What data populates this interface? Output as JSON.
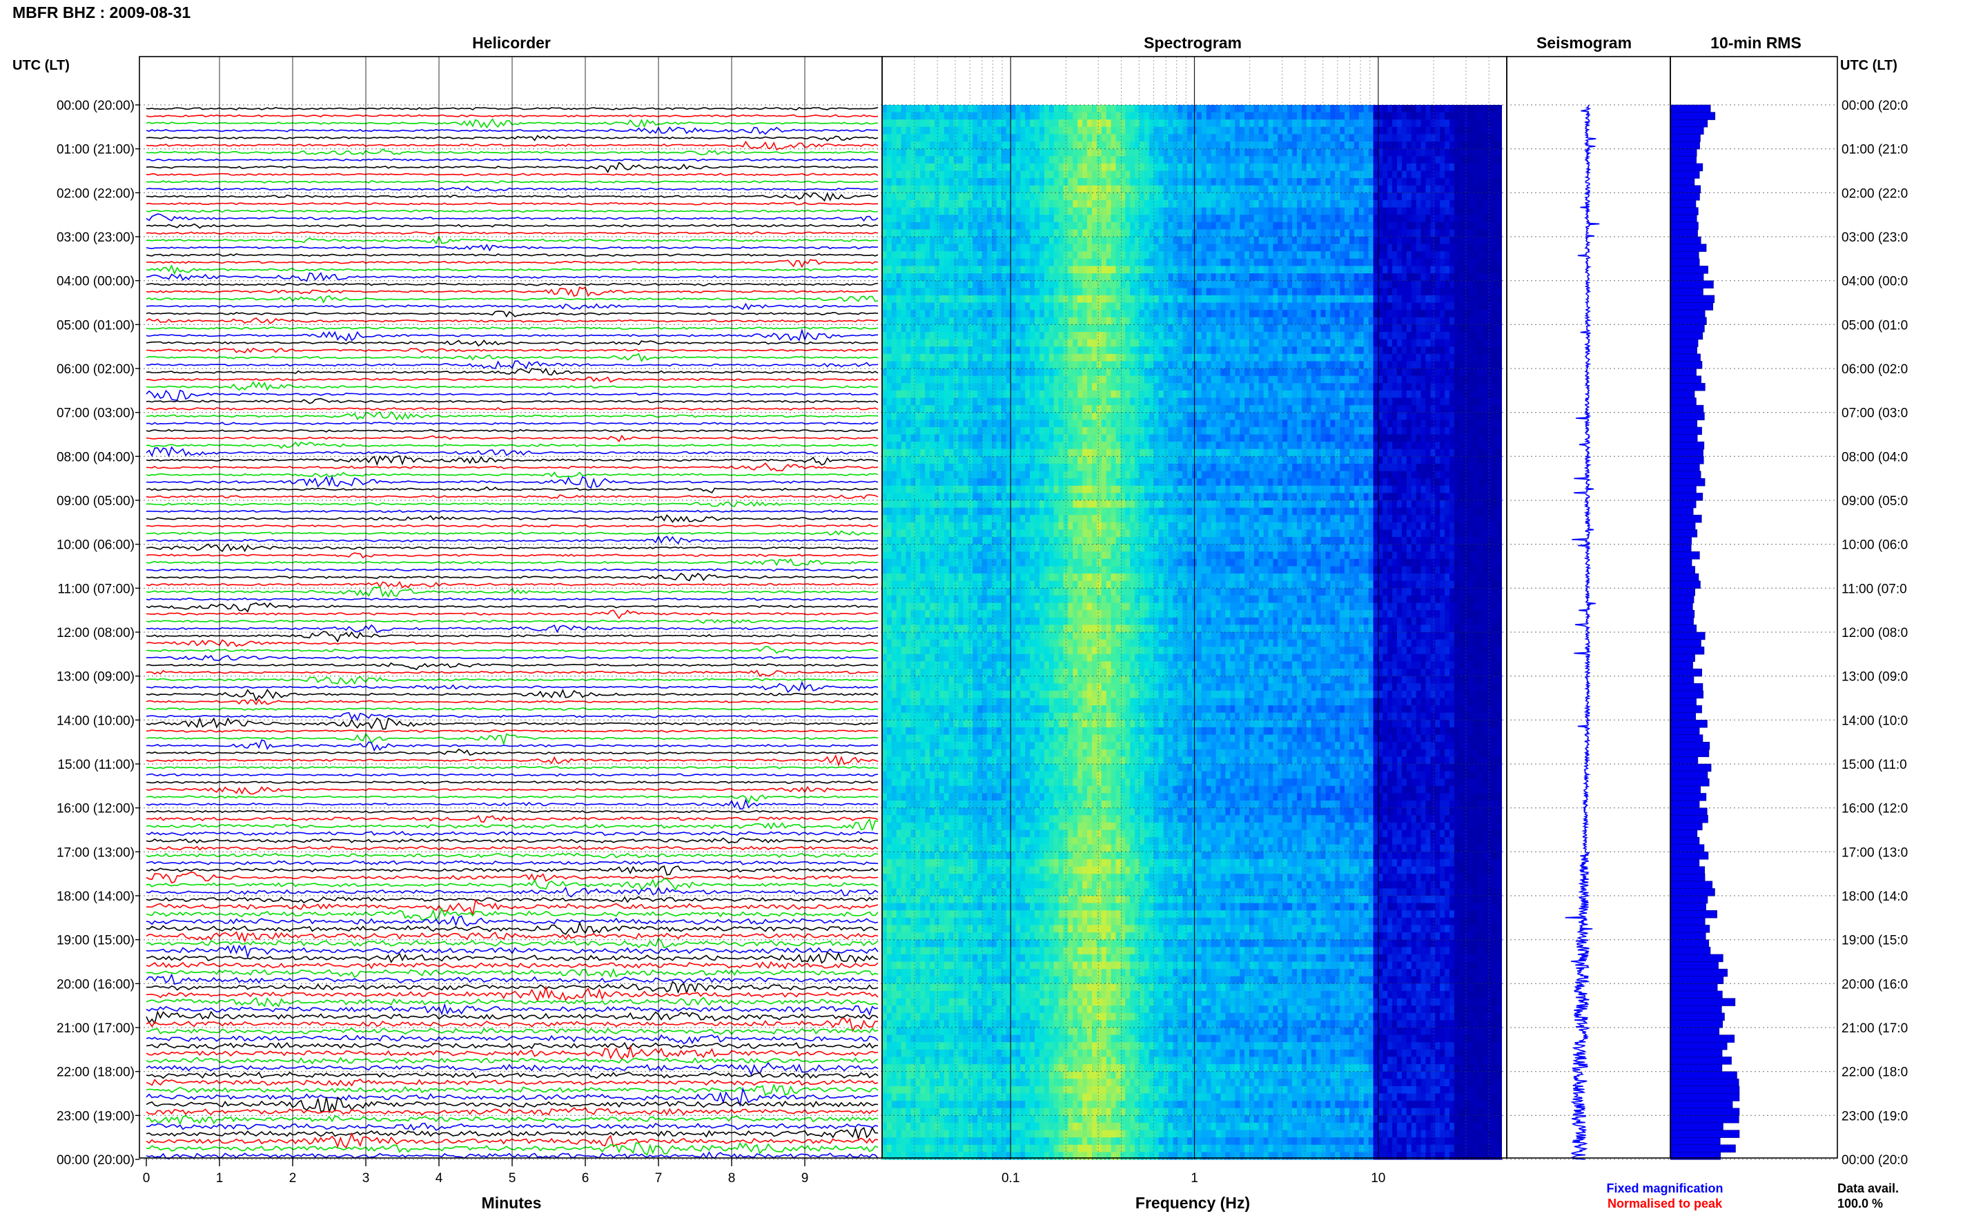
{
  "header": {
    "station_title": "MBFR BHZ : 2009-08-31",
    "utc_label_left": "UTC (LT)",
    "utc_label_right": "UTC (LT)"
  },
  "panels": {
    "helicorder_title": "Helicorder",
    "spectrogram_title": "Spectrogram",
    "seismogram_title": "Seismogram",
    "rms_title": "10-min RMS"
  },
  "footer": {
    "minutes_label": "Minutes",
    "frequency_label": "Frequency (Hz)",
    "fixed_magnification": "Fixed magnification",
    "normalised_to_peak": "Normalised to peak",
    "data_avail_label": "Data avail.",
    "data_avail_value": "100.0 %"
  },
  "colors": {
    "helicorder_traces": [
      "#000000",
      "#ff0000",
      "#00dd00",
      "#0000ff"
    ],
    "seismogram": "#0000ff",
    "rms_bar": "#0000ee",
    "fixed_magnification": "#0000ff",
    "normalised_to_peak": "#ff0000"
  },
  "chart_data": [
    {
      "type": "line",
      "name": "Helicorder",
      "x_axis": "Minutes",
      "xlim": [
        0,
        10
      ],
      "x_ticks": [
        "0",
        "1",
        "2",
        "3",
        "4",
        "5",
        "6",
        "7",
        "8",
        "9"
      ],
      "rows_per_hour": 6,
      "trace_color_cycle": [
        "black",
        "red",
        "green",
        "blue"
      ],
      "y_tick_labels_left": [
        "00:00 (20:00)",
        "01:00 (21:00)",
        "02:00 (22:00)",
        "03:00 (23:00)",
        "04:00 (00:00)",
        "05:00 (01:00)",
        "06:00 (02:00)",
        "07:00 (03:00)",
        "08:00 (04:00)",
        "09:00 (05:00)",
        "10:00 (06:00)",
        "11:00 (07:00)",
        "12:00 (08:00)",
        "13:00 (09:00)",
        "14:00 (10:00)",
        "15:00 (11:00)",
        "16:00 (12:00)",
        "17:00 (13:00)",
        "18:00 (14:00)",
        "19:00 (15:00)",
        "20:00 (16:00)",
        "21:00 (17:00)",
        "22:00 (18:00)",
        "23:00 (19:00)",
        "00:00 (20:00)"
      ],
      "y_tick_labels_right": [
        "00:00 (20:0",
        "01:00 (21:0",
        "02:00 (22:0",
        "03:00 (23:0",
        "04:00 (00:0",
        "05:00 (01:0",
        "06:00 (02:0",
        "07:00 (03:0",
        "08:00 (04:0",
        "09:00 (05:0",
        "10:00 (06:0",
        "11:00 (07:0",
        "12:00 (08:0",
        "13:00 (09:0",
        "14:00 (10:0",
        "15:00 (11:0",
        "16:00 (12:0",
        "17:00 (13:0",
        "18:00 (14:0",
        "19:00 (15:0",
        "20:00 (16:0",
        "21:00 (17:0",
        "22:00 (18:0",
        "23:00 (19:0",
        "00:00 (20:0"
      ]
    },
    {
      "type": "heatmap",
      "name": "Spectrogram",
      "x_axis": "Frequency (Hz)",
      "x_scale": "log",
      "xlim": [
        0.02,
        50
      ],
      "x_tick_labels": [
        "0.1",
        "1",
        "10"
      ],
      "colormap": [
        "#000080",
        "#0000cd",
        "#0050ff",
        "#00a0ff",
        "#00e0e0",
        "#40f0a0",
        "#c8f040"
      ],
      "peak_energy_hz": 0.3
    },
    {
      "type": "line",
      "name": "Seismogram",
      "y_axis": "hours UTC",
      "ylim": [
        0,
        24
      ],
      "note_color": "blue"
    },
    {
      "type": "bar",
      "name": "10-min RMS",
      "orientation": "horizontal",
      "bin_minutes": 10,
      "relative_values_hourly": [
        0.6,
        0.45,
        0.38,
        0.46,
        0.55,
        0.5,
        0.42,
        0.44,
        0.52,
        0.42,
        0.35,
        0.38,
        0.42,
        0.4,
        0.45,
        0.5,
        0.46,
        0.5,
        0.55,
        0.62,
        0.75,
        0.85,
        0.92,
        0.95,
        0.85
      ]
    }
  ]
}
